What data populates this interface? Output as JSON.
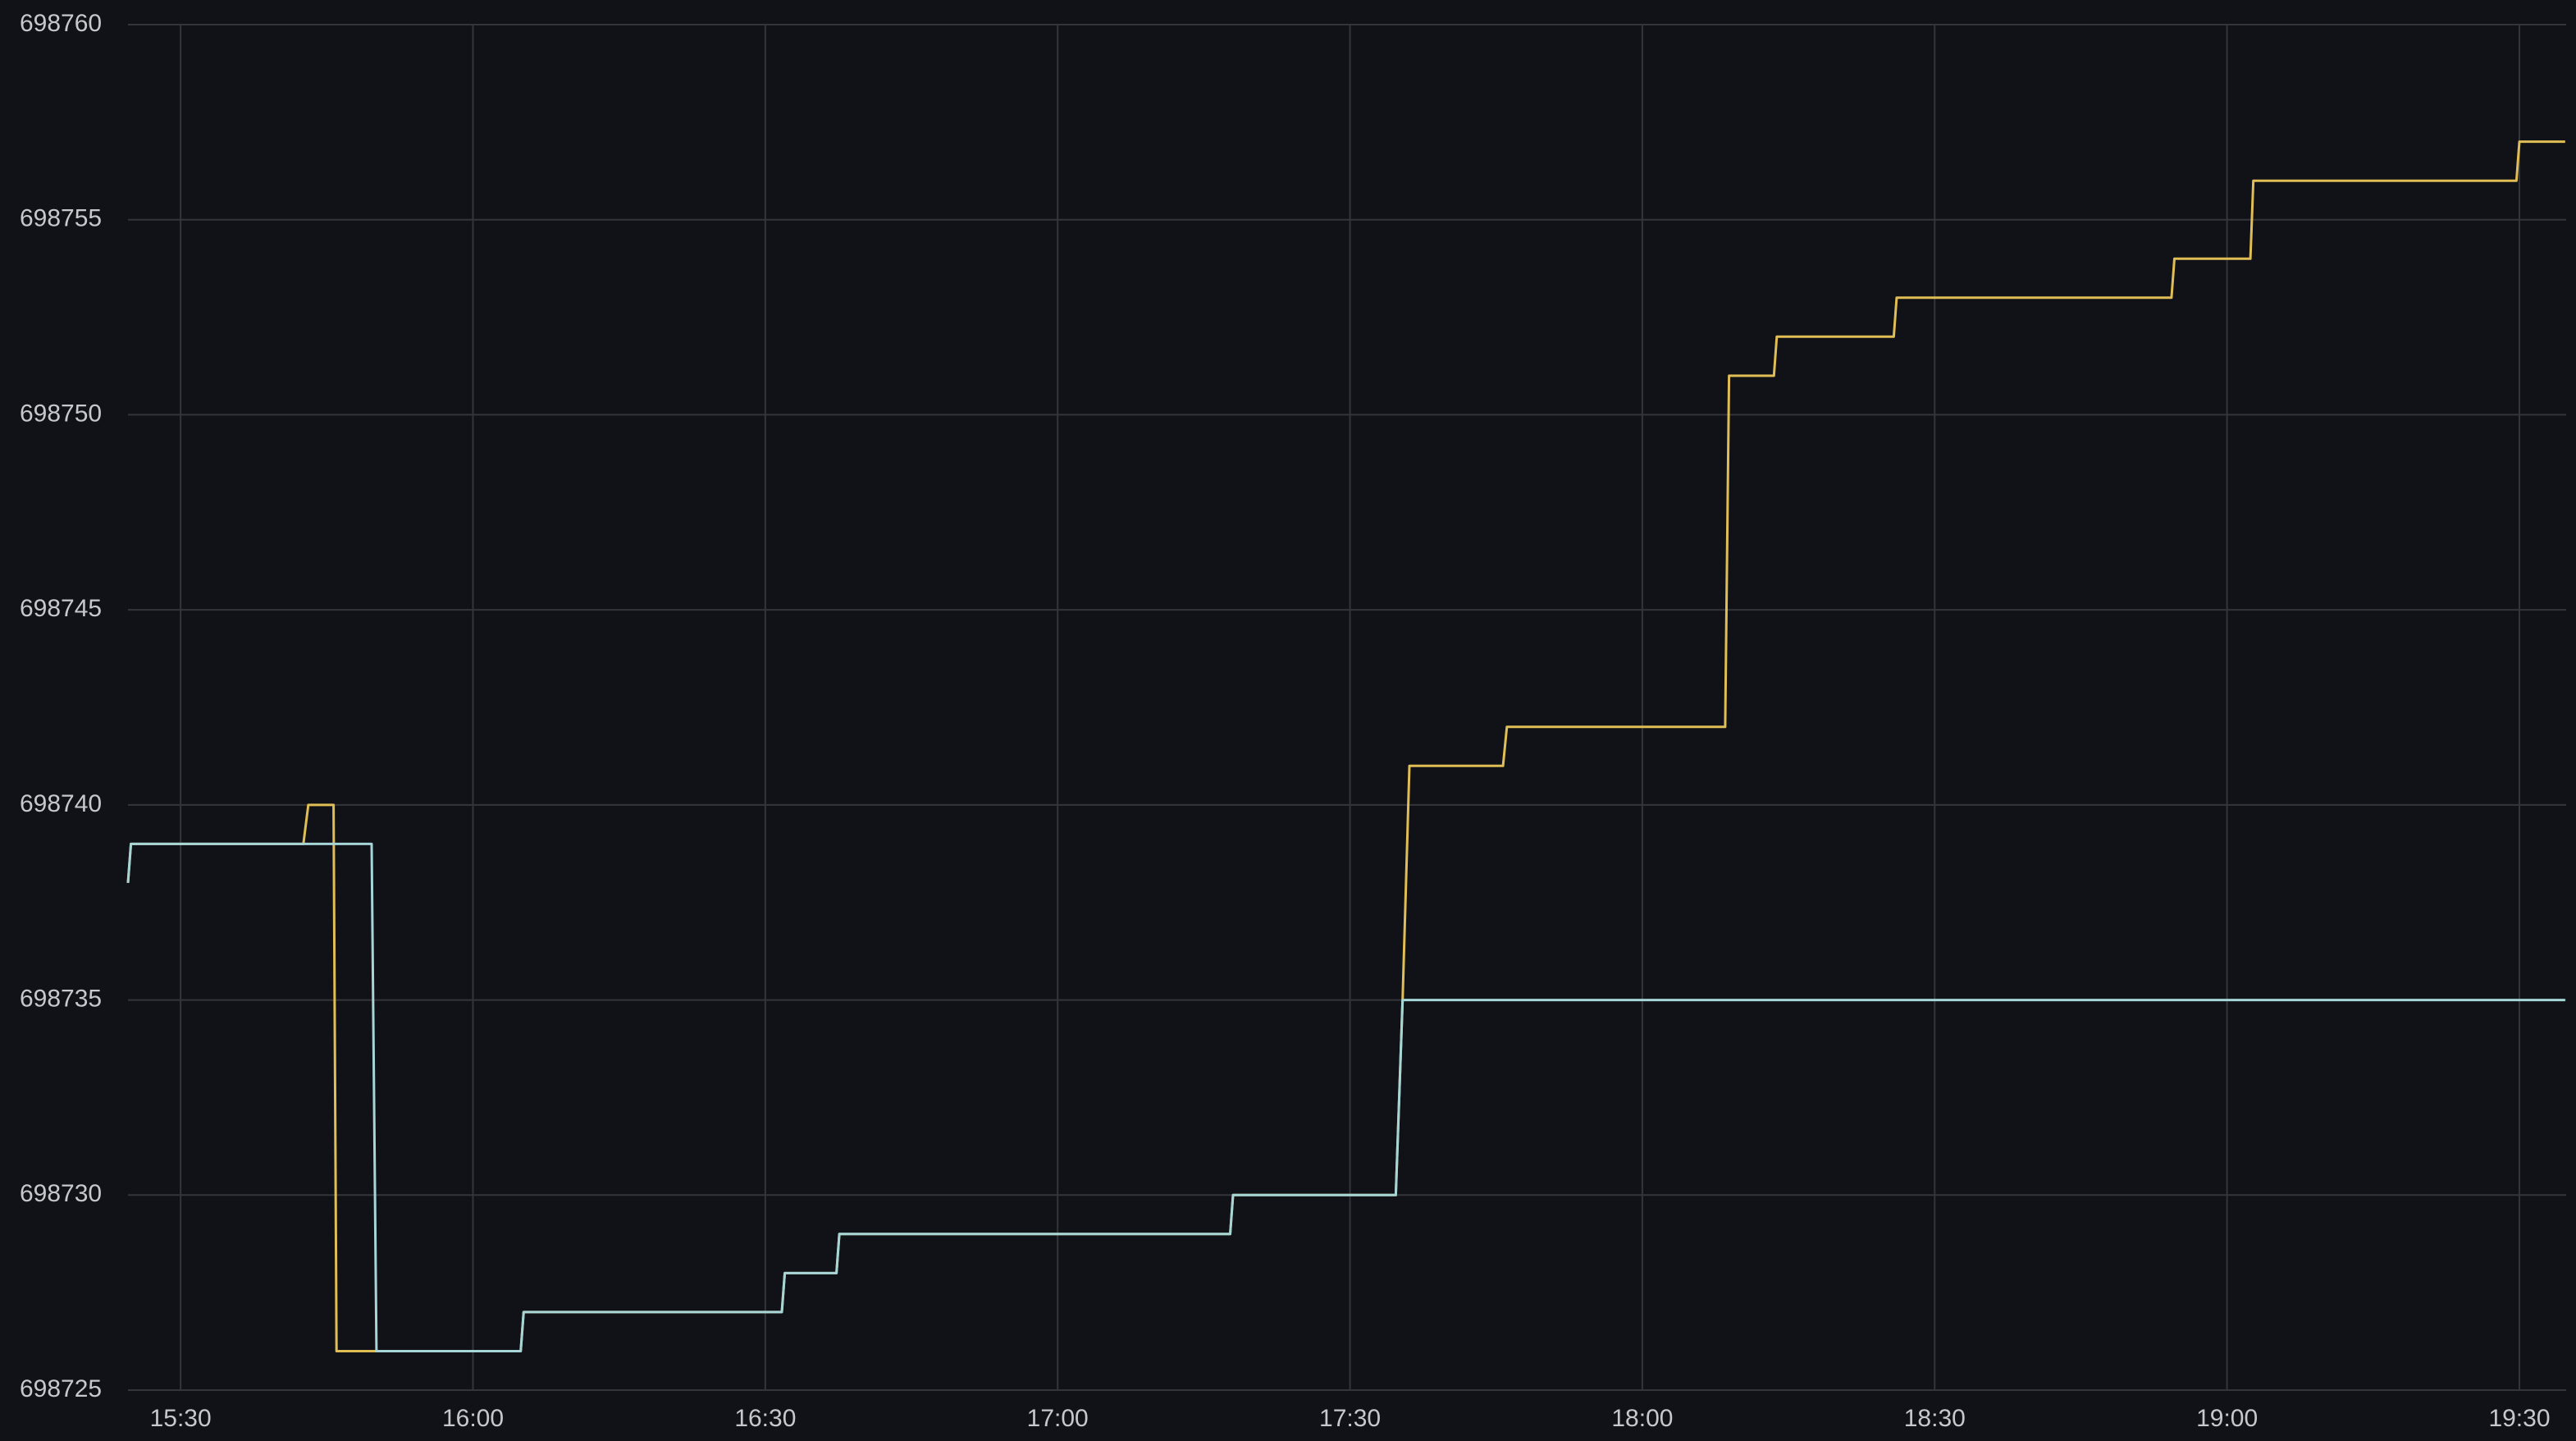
{
  "chart_data": {
    "type": "line",
    "x_unit_minutes_of_day": true,
    "xlim": [
      924.6,
      1174.8
    ],
    "xticks": [
      {
        "value": 930,
        "label": "15:30"
      },
      {
        "value": 960,
        "label": "16:00"
      },
      {
        "value": 990,
        "label": "16:30"
      },
      {
        "value": 1020,
        "label": "17:00"
      },
      {
        "value": 1050,
        "label": "17:30"
      },
      {
        "value": 1080,
        "label": "18:00"
      },
      {
        "value": 1110,
        "label": "18:30"
      },
      {
        "value": 1140,
        "label": "19:00"
      },
      {
        "value": 1170,
        "label": "19:30"
      }
    ],
    "ylim": [
      698725,
      698760
    ],
    "yticks": [
      698725,
      698730,
      698735,
      698740,
      698745,
      698750,
      698755,
      698760
    ],
    "grid": true,
    "series": [
      {
        "color": "#e0bd55",
        "x": [
          924.6,
          924.9,
          942.6,
          943.1,
          945.7,
          946.0,
          964.9,
          965.2,
          991.7,
          992.0,
          997.3,
          997.6,
          1037.7,
          1038.0,
          1054.7,
          1055.4,
          1056.1,
          1065.7,
          1066.1,
          1088.5,
          1088.9,
          1093.5,
          1093.8,
          1105.8,
          1106.1,
          1134.3,
          1134.6,
          1142.4,
          1142.7,
          1169.7,
          1170.0,
          1174.7
        ],
        "values": [
          698738,
          698739,
          698739,
          698740,
          698740,
          698726,
          698726,
          698727,
          698727,
          698728,
          698728,
          698729,
          698729,
          698730,
          698730,
          698735,
          698741,
          698741,
          698742,
          698742,
          698751,
          698751,
          698752,
          698752,
          698753,
          698753,
          698754,
          698754,
          698756,
          698756,
          698757,
          698757
        ]
      },
      {
        "color": "#a6d5d8",
        "x": [
          924.6,
          924.9,
          949.6,
          950.1,
          964.9,
          965.2,
          991.7,
          992.0,
          997.3,
          997.6,
          1037.7,
          1038.0,
          1054.7,
          1055.4,
          1174.7
        ],
        "values": [
          698738,
          698739,
          698739,
          698726,
          698726,
          698727,
          698727,
          698728,
          698728,
          698729,
          698729,
          698730,
          698730,
          698735,
          698735
        ]
      }
    ]
  }
}
